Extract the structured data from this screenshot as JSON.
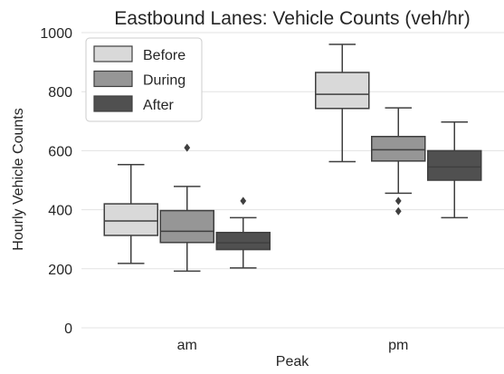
{
  "chart_data": {
    "type": "boxplot",
    "title": "Eastbound Lanes: Vehicle Counts (veh/hr)",
    "xlabel": "Peak",
    "ylabel": "Hourly Vehicle Counts",
    "ylim": [
      0,
      1000
    ],
    "yticks": [
      0,
      200,
      400,
      600,
      800,
      1000
    ],
    "categories": [
      "am",
      "pm"
    ],
    "grid": "horizontal",
    "legend_position": "top-left",
    "series": [
      {
        "name": "Before",
        "color": "#d9d9d9",
        "boxes": [
          {
            "category": "am",
            "whisker_low": 218,
            "q1": 313,
            "median": 362,
            "q3": 420,
            "whisker_high": 553,
            "outliers": []
          },
          {
            "category": "pm",
            "whisker_low": 563,
            "q1": 743,
            "median": 791,
            "q3": 865,
            "whisker_high": 960,
            "outliers": []
          }
        ]
      },
      {
        "name": "During",
        "color": "#969696",
        "boxes": [
          {
            "category": "am",
            "whisker_low": 192,
            "q1": 289,
            "median": 327,
            "q3": 397,
            "whisker_high": 479,
            "outliers": [
              610
            ]
          },
          {
            "category": "pm",
            "whisker_low": 456,
            "q1": 565,
            "median": 603,
            "q3": 648,
            "whisker_high": 745,
            "outliers": [
              430,
              395
            ]
          }
        ]
      },
      {
        "name": "After",
        "color": "#505050",
        "boxes": [
          {
            "category": "am",
            "whisker_low": 203,
            "q1": 265,
            "median": 288,
            "q3": 323,
            "whisker_high": 373,
            "outliers": [
              430
            ]
          },
          {
            "category": "pm",
            "whisker_low": 373,
            "q1": 500,
            "median": 545,
            "q3": 600,
            "whisker_high": 697,
            "outliers": []
          }
        ]
      }
    ]
  }
}
